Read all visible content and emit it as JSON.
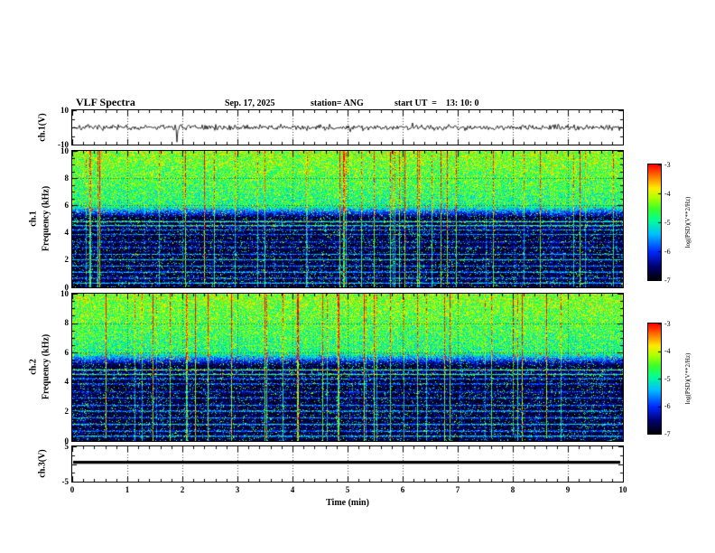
{
  "header": {
    "title": "VLF Spectra",
    "date": "Sep. 17, 2025",
    "station": "station= ANG",
    "start_ut": "start UT  =    13: 10: 0"
  },
  "x_axis": {
    "label": "Time (min)",
    "min": 0,
    "max": 10,
    "ticks": [
      "0",
      "1",
      "2",
      "3",
      "4",
      "5",
      "6",
      "7",
      "8",
      "9",
      "10"
    ]
  },
  "panels": {
    "wave": {
      "ylabel": "ch.1(V)",
      "ymin": -10,
      "ymax": 10,
      "ytick_values": [
        10,
        -10
      ],
      "ytick_labels": [
        "10",
        "-10"
      ]
    },
    "spec1": {
      "ylabel_channel": "ch.1",
      "ylabel_axis": "Frequency (kHz)",
      "ymin": 0,
      "ymax": 10,
      "ytick_values": [
        10,
        8,
        6,
        4,
        2,
        0
      ],
      "ytick_labels": [
        "10",
        "8",
        "6",
        "4",
        "2",
        "0"
      ]
    },
    "spec2": {
      "ylabel_channel": "ch.2",
      "ylabel_axis": "Frequency (kHz)",
      "ymin": 0,
      "ymax": 10,
      "ytick_values": [
        10,
        8,
        6,
        4,
        2,
        0
      ],
      "ytick_labels": [
        "10",
        "8",
        "6",
        "4",
        "2",
        "0"
      ]
    },
    "ch3": {
      "ylabel": "ch.3(V)",
      "ymin": -5,
      "ymax": 5,
      "ytick_values": [
        5,
        -5
      ],
      "ytick_labels": [
        "5",
        "-5"
      ]
    }
  },
  "colorbars": [
    {
      "label": "log(PSD)(V**2/Hz)",
      "vmin": -7,
      "vmax": -3,
      "tick_values": [
        -3,
        -4,
        -5,
        -6,
        -7
      ],
      "tick_labels": [
        "-3",
        "-4",
        "-5",
        "-6",
        "-7"
      ]
    },
    {
      "label": "log(PSD)(V**2/Hz)",
      "vmin": -7,
      "vmax": -3,
      "tick_values": [
        -3,
        -4,
        -5,
        -6,
        -7
      ],
      "tick_labels": [
        "-3",
        "-4",
        "-5",
        "-6",
        "-7"
      ]
    }
  ],
  "colors": {
    "background": "#ffffff",
    "axis": "#000000",
    "colormap_order": "black-navy-blue-cyan-green-yellow-orange-red"
  },
  "chart_data": [
    {
      "type": "line",
      "name": "ch.1 waveform",
      "xlabel": "Time (min)",
      "x_range": [
        0,
        10
      ],
      "ylabel": "ch.1(V)",
      "y_range": [
        -10,
        10
      ],
      "summary": "continuous broadband noise of roughly +/-1.5 V centered on 0 V for the full 10 minutes, with sporadic impulsive spikes; the largest spike reaches about -8.5 V near 1.9 min",
      "largest_spike_min": 1.9,
      "largest_spike_v": -8.5
    },
    {
      "type": "heatmap",
      "name": "ch.1 spectrogram",
      "xlabel": "Time (min)",
      "x_range": [
        0,
        10
      ],
      "ylabel": "Frequency (kHz)",
      "y_range": [
        0,
        10
      ],
      "z_label": "log(PSD)(V**2/Hz)",
      "z_range": [
        -7,
        -3
      ],
      "summary": "intense broadband hiss above ~6 kHz (log PSD about -5 to -3.5, green/yellow with occasional red flecks); darker band between ~5 and 6 kHz; quiet dark background (about -6.8) below 5 kHz crossed by dense vertical sferic streaks and persistent narrowband horizontal transmitter lines",
      "narrowband_lines_khz": [
        4.85,
        4.55,
        4.25,
        3.9,
        3.35,
        2.95,
        2.45,
        2.05,
        1.6,
        1.15,
        0.7,
        0.35
      ]
    },
    {
      "type": "heatmap",
      "name": "ch.2 spectrogram",
      "xlabel": "Time (min)",
      "x_range": [
        0,
        10
      ],
      "ylabel": "Frequency (kHz)",
      "y_range": [
        0,
        10
      ],
      "z_label": "log(PSD)(V**2/Hz)",
      "z_range": [
        -7,
        -3
      ],
      "summary": "same structure as ch.1: broadband hiss above ~6 kHz, dark 5-6 kHz band, dark background below 5 kHz with vertical sferic streaks and narrowband horizontal lines",
      "narrowband_lines_khz": [
        4.85,
        4.55,
        4.25,
        3.9,
        3.35,
        2.95,
        2.45,
        2.05,
        1.6,
        1.15,
        0.7,
        0.35
      ]
    },
    {
      "type": "line",
      "name": "ch.3 waveform",
      "xlabel": "Time (min)",
      "x_range": [
        0,
        10
      ],
      "ylabel": "ch.3(V)",
      "y_range": [
        -5,
        5
      ],
      "summary": "flat constant level slightly above 0 V (~+0.5 V) for the entire record (thick black line)",
      "value_v": 0.5
    }
  ]
}
